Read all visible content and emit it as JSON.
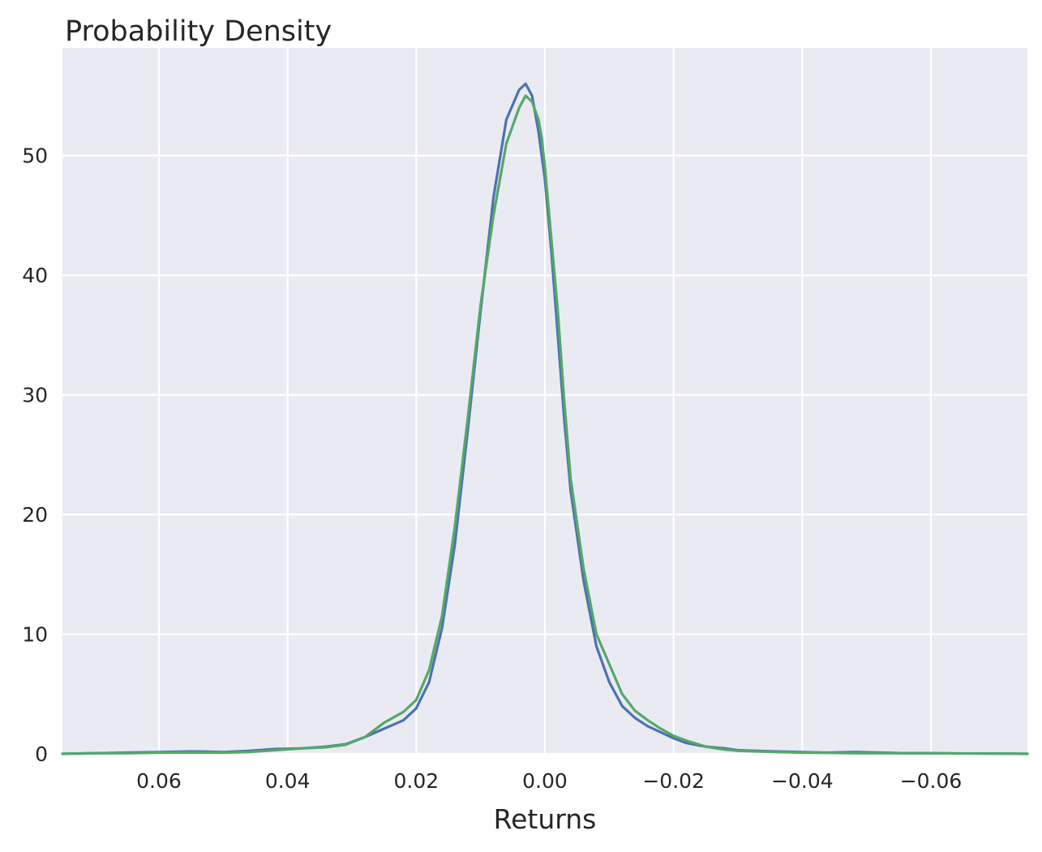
{
  "chart_data": {
    "type": "line",
    "title": "Probability Density",
    "xlabel": "Returns",
    "ylabel": "",
    "x_axis_reversed": true,
    "xlim": [
      0.075,
      -0.075
    ],
    "ylim": [
      0,
      59
    ],
    "x_ticks": [
      0.06,
      0.04,
      0.02,
      0.0,
      -0.02,
      -0.04,
      -0.06
    ],
    "x_tick_labels": [
      "0.06",
      "0.04",
      "0.02",
      "0.00",
      "−0.02",
      "−0.04",
      "−0.06"
    ],
    "y_ticks": [
      0,
      10,
      20,
      30,
      40,
      50
    ],
    "y_tick_labels": [
      "0",
      "10",
      "20",
      "30",
      "40",
      "50"
    ],
    "grid": true,
    "background_color": "#eaeaf2",
    "series": [
      {
        "color": "#4c72b0",
        "x": [
          0.075,
          0.07,
          0.065,
          0.06,
          0.055,
          0.05,
          0.046,
          0.042,
          0.038,
          0.034,
          0.031,
          0.028,
          0.025,
          0.022,
          0.02,
          0.018,
          0.016,
          0.014,
          0.012,
          0.01,
          0.008,
          0.006,
          0.004,
          0.003,
          0.002,
          0.001,
          0.0005,
          0.0,
          -0.0005,
          -0.001,
          -0.002,
          -0.003,
          -0.004,
          -0.006,
          -0.008,
          -0.01,
          -0.012,
          -0.014,
          -0.016,
          -0.018,
          -0.02,
          -0.022,
          -0.025,
          -0.028,
          -0.03,
          -0.033,
          -0.036,
          -0.04,
          -0.044,
          -0.048,
          -0.052,
          -0.056,
          -0.06,
          -0.065,
          -0.07,
          -0.075
        ],
        "y": [
          0.0,
          0.05,
          0.1,
          0.15,
          0.2,
          0.15,
          0.25,
          0.4,
          0.45,
          0.6,
          0.8,
          1.4,
          2.1,
          2.8,
          3.8,
          6.0,
          10.5,
          17.5,
          27.0,
          37.0,
          46.5,
          53.0,
          55.5,
          56.0,
          55.0,
          52.0,
          50.0,
          48.0,
          45.0,
          42.0,
          35.0,
          28.0,
          22.0,
          14.5,
          9.0,
          6.0,
          4.0,
          3.0,
          2.3,
          1.8,
          1.3,
          0.9,
          0.6,
          0.45,
          0.3,
          0.25,
          0.2,
          0.15,
          0.1,
          0.15,
          0.1,
          0.05,
          0.05,
          0.03,
          0.02,
          0.0
        ]
      },
      {
        "color": "#55a868",
        "x": [
          0.075,
          0.07,
          0.065,
          0.06,
          0.055,
          0.05,
          0.046,
          0.042,
          0.038,
          0.034,
          0.031,
          0.028,
          0.025,
          0.022,
          0.02,
          0.018,
          0.016,
          0.014,
          0.012,
          0.01,
          0.008,
          0.006,
          0.004,
          0.003,
          0.002,
          0.001,
          0.0005,
          0.0,
          -0.0005,
          -0.001,
          -0.002,
          -0.003,
          -0.004,
          -0.006,
          -0.008,
          -0.01,
          -0.012,
          -0.014,
          -0.016,
          -0.018,
          -0.02,
          -0.022,
          -0.025,
          -0.028,
          -0.03,
          -0.033,
          -0.036,
          -0.04,
          -0.044,
          -0.048,
          -0.052,
          -0.056,
          -0.06,
          -0.065,
          -0.07,
          -0.075
        ],
        "y": [
          0.0,
          0.05,
          0.05,
          0.1,
          0.1,
          0.1,
          0.15,
          0.3,
          0.45,
          0.55,
          0.75,
          1.4,
          2.6,
          3.5,
          4.5,
          7.0,
          11.5,
          19.0,
          28.0,
          37.5,
          45.0,
          51.0,
          54.0,
          55.0,
          54.5,
          53.0,
          51.5,
          49.0,
          46.0,
          43.0,
          37.0,
          29.5,
          23.0,
          15.5,
          10.0,
          7.5,
          5.0,
          3.6,
          2.8,
          2.1,
          1.5,
          1.1,
          0.6,
          0.35,
          0.25,
          0.2,
          0.15,
          0.1,
          0.08,
          0.05,
          0.05,
          0.05,
          0.05,
          0.03,
          0.02,
          0.0
        ]
      }
    ]
  }
}
